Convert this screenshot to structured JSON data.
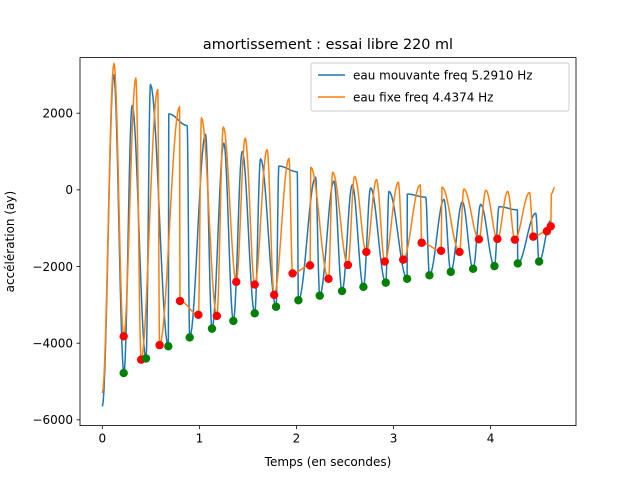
{
  "chart_data": {
    "type": "line",
    "title": "amortissement : essai libre 220 ml",
    "xlabel": "Temps (en secondes)",
    "ylabel": "accélération  (ay)",
    "xlim": [
      -0.23,
      4.88
    ],
    "ylim": [
      -6150,
      3450
    ],
    "xticks": [
      0,
      1,
      2,
      3,
      4
    ],
    "xtick_labels": [
      "0",
      "1",
      "2",
      "3",
      "4"
    ],
    "yticks": [
      -6000,
      -4000,
      -2000,
      0,
      2000
    ],
    "ytick_labels": [
      "−6000",
      "−4000",
      "−2000",
      "0",
      "2000"
    ],
    "grid": false,
    "legend_position": "upper-right",
    "series": [
      {
        "name": "eau mouvante freq 5.2910 Hz",
        "color": "#1f77b4",
        "kind": "damped-oscillation",
        "t_start": 0.0,
        "t_end": 4.62,
        "frequency": 5.291,
        "peak_times": [
          0.118,
          0.307,
          0.496,
          0.685,
          0.874,
          1.063,
          1.252,
          1.441,
          1.63,
          1.819,
          2.008,
          2.197,
          2.386,
          2.575,
          2.764,
          2.953,
          3.142,
          3.331,
          3.52,
          3.709,
          3.898,
          4.087,
          4.276,
          4.465
        ],
        "peak_values": [
          3000,
          2200,
          2750,
          1980,
          1680,
          1450,
          1220,
          1000,
          810,
          620,
          470,
          330,
          230,
          130,
          50,
          -40,
          -110,
          -190,
          -250,
          -310,
          -380,
          -440,
          -520,
          -610
        ],
        "trough_times": [
          0.0,
          0.223,
          0.45,
          0.68,
          0.9,
          1.13,
          1.35,
          1.57,
          1.79,
          2.02,
          2.24,
          2.47,
          2.69,
          2.92,
          3.14,
          3.37,
          3.59,
          3.82,
          4.04,
          4.28,
          4.5
        ],
        "trough_values": [
          -5650,
          -4780,
          -4400,
          -4080,
          -3850,
          -3620,
          -3420,
          -3220,
          -3050,
          -2880,
          -2760,
          -2640,
          -2530,
          -2420,
          -2320,
          -2230,
          -2140,
          -2060,
          -1990,
          -1920,
          -1870
        ],
        "end_value": -800
      },
      {
        "name": "eau fixe freq 4.4374 Hz",
        "color": "#ff7f0e",
        "kind": "damped-oscillation",
        "t_start": 0.0,
        "t_end": 4.66,
        "frequency": 4.4374,
        "peak_times": [
          0.12,
          0.345,
          0.571,
          0.796,
          1.021,
          1.247,
          1.472,
          1.697,
          1.923,
          2.148,
          2.373,
          2.599,
          2.824,
          3.049,
          3.275,
          3.5,
          3.725,
          3.951,
          4.176,
          4.401,
          4.627
        ],
        "peak_values": [
          3300,
          2920,
          2620,
          2170,
          1880,
          1640,
          1350,
          1050,
          820,
          590,
          460,
          350,
          270,
          200,
          130,
          70,
          20,
          -10,
          -40,
          -70,
          -100
        ],
        "trough_times": [
          0.0,
          0.22,
          0.4,
          0.59,
          0.8,
          0.99,
          1.18,
          1.38,
          1.57,
          1.77,
          1.96,
          2.14,
          2.33,
          2.53,
          2.72,
          2.91,
          3.1,
          3.29,
          3.49,
          3.68,
          3.88,
          4.07,
          4.25,
          4.44,
          4.58,
          4.62
        ],
        "trough_values": [
          -5300,
          -3820,
          -4430,
          -4050,
          -2900,
          -3260,
          -3290,
          -2400,
          -2470,
          -2740,
          -2180,
          -1970,
          -2320,
          -1960,
          -1620,
          -1870,
          -1820,
          -1380,
          -1590,
          -1620,
          -1290,
          -1280,
          -1300,
          -1220,
          -1080,
          -950
        ],
        "end_value": 60
      },
      {
        "name": "",
        "color": "#ff0000",
        "kind": "markers",
        "x": [
          0.22,
          0.4,
          0.59,
          0.8,
          0.99,
          1.18,
          1.38,
          1.57,
          1.77,
          1.96,
          2.14,
          2.33,
          2.53,
          2.72,
          2.91,
          3.1,
          3.29,
          3.49,
          3.68,
          3.88,
          4.07,
          4.25,
          4.44,
          4.58,
          4.62
        ],
        "y": [
          -3820,
          -4430,
          -4050,
          -2900,
          -3260,
          -3290,
          -2400,
          -2470,
          -2740,
          -2180,
          -1970,
          -2320,
          -1960,
          -1620,
          -1870,
          -1820,
          -1380,
          -1590,
          -1620,
          -1290,
          -1280,
          -1300,
          -1220,
          -1080,
          -950
        ]
      },
      {
        "name": "",
        "color": "#008000",
        "kind": "markers",
        "x": [
          0.22,
          0.45,
          0.68,
          0.9,
          1.13,
          1.35,
          1.57,
          1.79,
          2.02,
          2.24,
          2.47,
          2.69,
          2.92,
          3.14,
          3.37,
          3.59,
          3.82,
          4.04,
          4.28,
          4.5
        ],
        "y": [
          -4780,
          -4400,
          -4080,
          -3850,
          -3620,
          -3420,
          -3220,
          -3050,
          -2880,
          -2760,
          -2640,
          -2530,
          -2420,
          -2320,
          -2230,
          -2140,
          -2060,
          -1990,
          -1920,
          -1870
        ]
      }
    ]
  }
}
